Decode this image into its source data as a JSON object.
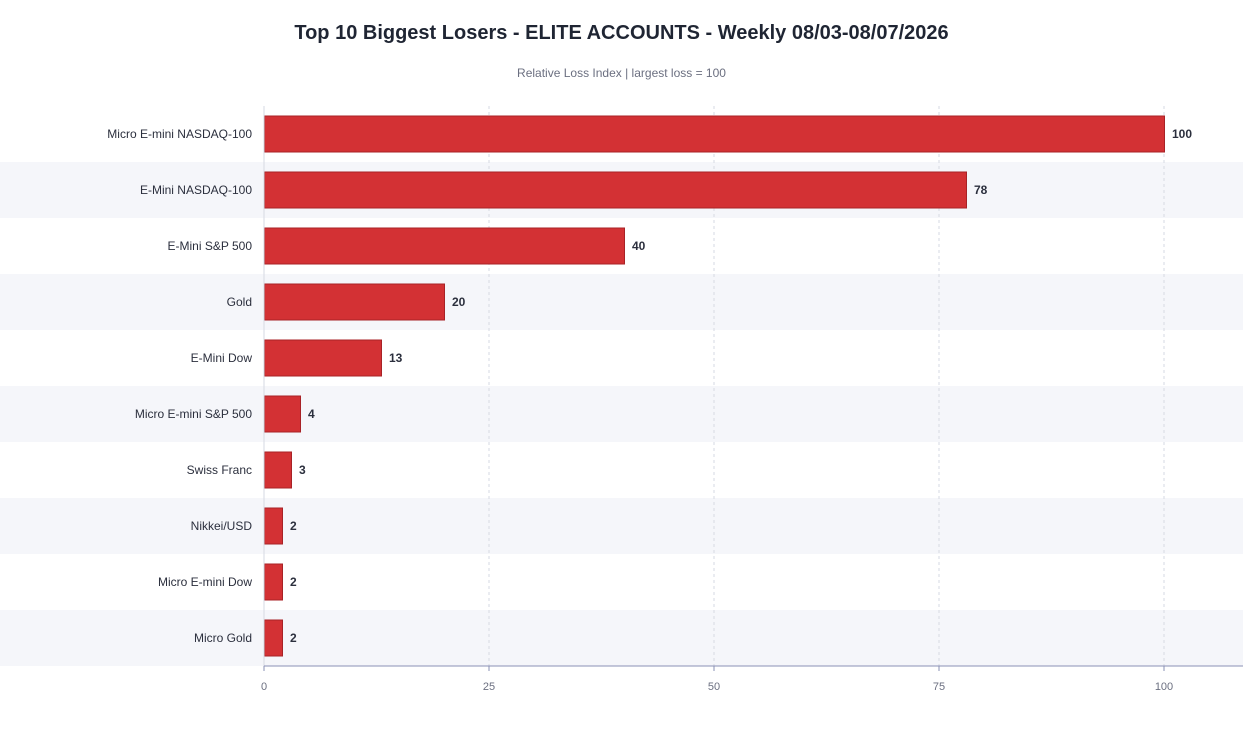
{
  "chart_data": {
    "type": "bar",
    "orientation": "horizontal",
    "title": "Top 10 Biggest Losers - ELITE ACCOUNTS - Weekly 08/03-08/07/2026",
    "subtitle": "Relative Loss Index  |  largest loss = 100",
    "categories": [
      "Micro E-mini NASDAQ-100",
      "E-Mini NASDAQ-100",
      "E-Mini S&P 500",
      "Gold",
      "E-Mini Dow",
      "Micro E-mini S&P 500",
      "Swiss Franc",
      "Nikkei/USD",
      "Micro E-mini Dow",
      "Micro Gold"
    ],
    "values": [
      100,
      78,
      40,
      20,
      13,
      4,
      3,
      2,
      2,
      2
    ],
    "xlim": [
      0,
      100
    ],
    "xticks": [
      0,
      25,
      50,
      75,
      100
    ],
    "grid": true,
    "colors": {
      "bar": "#d33134",
      "bar_stroke": "#a82226",
      "row_band": "#f5f6fa",
      "grid": "#d6d9e3",
      "axis": "#8a90b5"
    }
  }
}
